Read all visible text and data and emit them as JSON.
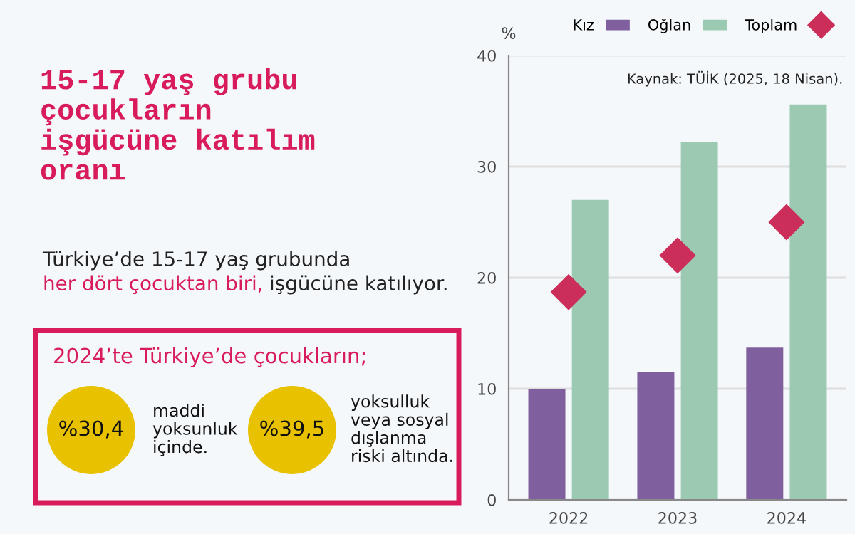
{
  "chart_data": [
    {
      "type": "other",
      "title": "15-17 yaş grubu\nçocukların\nişgücüne katılım\noranı",
      "annotations": [
        "Türkiye’de 15-17 yaş grubunda",
        "her dört çocuktan biri,",
        "işgücüne katılıyor.",
        "2024’te Türkiye’de çocukların;",
        "%30,4",
        "maddi\nyoksunluk\niçinde.",
        "%39,5",
        "yoksulluk\nveya sosyal\ndışlanma\nriski altında."
      ]
    },
    {
      "type": "bar",
      "categories": [
        "2022",
        "2023",
        "2024"
      ],
      "ylabel": "%",
      "ylim": [
        0,
        40
      ],
      "yticks": [
        0,
        10,
        20,
        30,
        40
      ],
      "grid": "y",
      "legend": "top right",
      "annotations": [
        "Kaynak: TÜİK (2025, 18 Nisan)."
      ],
      "series": [
        {
          "name": "Kız",
          "type": "bar",
          "color": "#7f5f9e",
          "values": [
            10.0,
            11.5,
            13.7
          ]
        },
        {
          "name": "Oğlan",
          "type": "bar",
          "color": "#9bc9b2",
          "values": [
            27.0,
            32.2,
            35.6
          ]
        },
        {
          "name": "Toplam",
          "type": "scatter",
          "marker": "diamond",
          "color": "#cc2e5a",
          "values": [
            18.7,
            22.0,
            25.0
          ]
        }
      ]
    }
  ]
}
